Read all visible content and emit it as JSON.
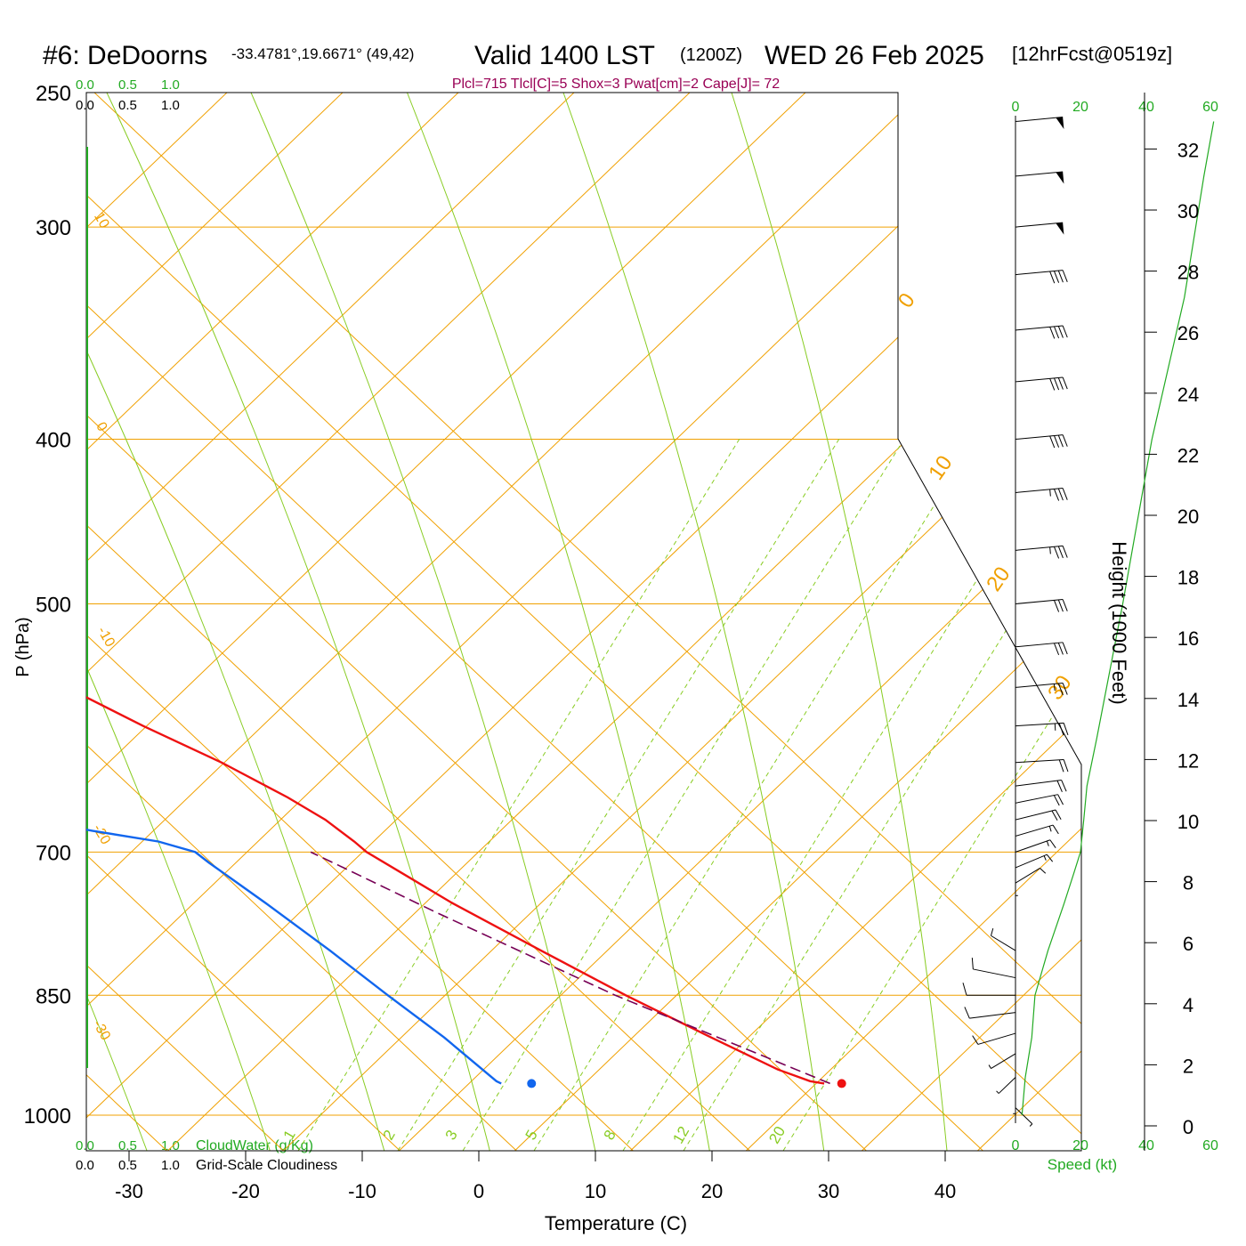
{
  "header": {
    "station": "#6: DeDoorns",
    "coords": "-33.4781°,19.6671° (49,42)",
    "valid": "Valid 1400 LST",
    "zulu": "(1200Z)",
    "date": "WED 26 Feb 2025",
    "fcst": "[12hrFcst@0519z]",
    "indices": "Plcl=715 Tlcl[C]=5 Shox=3 Pwat[cm]=2 Cape[J]= 72"
  },
  "colors": {
    "temperature": "#ee1111",
    "dewpoint": "#1166ee",
    "parcel": "#770055",
    "isotherm": "#f0a000",
    "moist_adiabat": "#88cc22",
    "mixing_ratio": "#88cc22",
    "wind_profile": "#22aa22",
    "indices": "#990055",
    "cloud_scale": "#22aa22"
  },
  "labels": {
    "cloud_top_green": [
      "0.0",
      "0.5",
      "1.0"
    ],
    "cloud_top_black": [
      "0.0",
      "0.5",
      "1.0"
    ],
    "cloud_bottom_green": [
      "0.0",
      "0.5",
      "1.0"
    ],
    "cloud_bottom_black": [
      "0.0",
      "0.5",
      "1.0"
    ],
    "cloudwater": "CloudWater (g/Kg)",
    "cloudiness": "Grid-Scale Cloudiness",
    "speed_label": "Speed (kt)",
    "speed_ticks_top": [
      "0",
      "20",
      "40",
      "60"
    ],
    "speed_ticks_bottom": [
      "0",
      "20",
      "40",
      "60"
    ],
    "height_label": "Height (1000 Feet)"
  },
  "chart_data": {
    "type": "line",
    "subtype": "skew-T log-P thermodynamic diagram",
    "xlabel": "Temperature (C)",
    "ylabel": "P (hPa)",
    "x_ticks": [
      -30,
      -20,
      -10,
      0,
      10,
      20,
      30,
      40
    ],
    "y_ticks": [
      250,
      300,
      400,
      500,
      700,
      850,
      1000
    ],
    "height_ticks_kft": [
      0,
      2,
      4,
      6,
      8,
      10,
      12,
      14,
      16,
      18,
      20,
      22,
      24,
      26,
      28,
      30,
      32
    ],
    "isotherm_labels": [
      "10",
      "0",
      "-10",
      "-20",
      "-30",
      "0",
      "10",
      "20",
      "30"
    ],
    "mixing_ratio_labels": [
      "1",
      "2",
      "3",
      "5",
      "8",
      "12",
      "20"
    ],
    "series": [
      {
        "name": "temperature",
        "points": [
          {
            "p": 958,
            "t": 32.5
          },
          {
            "p": 955,
            "t": 31.5
          },
          {
            "p": 940,
            "t": 29.8
          },
          {
            "p": 900,
            "t": 27.0
          },
          {
            "p": 850,
            "t": 23.5
          },
          {
            "p": 800,
            "t": 20.3
          },
          {
            "p": 750,
            "t": 17.0
          },
          {
            "p": 720,
            "t": 15.4
          },
          {
            "p": 700,
            "t": 14.3
          },
          {
            "p": 690,
            "t": 14.2
          },
          {
            "p": 670,
            "t": 13.7
          },
          {
            "p": 650,
            "t": 12.5
          },
          {
            "p": 620,
            "t": 10.0
          },
          {
            "p": 590,
            "t": 6.6
          },
          {
            "p": 550,
            "t": 2.5
          },
          {
            "p": 500,
            "t": -3.0
          },
          {
            "p": 470,
            "t": -6.2
          },
          {
            "p": 440,
            "t": -10.2
          },
          {
            "p": 400,
            "t": -15.7
          },
          {
            "p": 370,
            "t": -20.6
          },
          {
            "p": 350,
            "t": -24.5
          },
          {
            "p": 330,
            "t": -28.4
          },
          {
            "p": 310,
            "t": -32.9
          },
          {
            "p": 295,
            "t": -36.2
          },
          {
            "p": 280,
            "t": -39.8
          },
          {
            "p": 270,
            "t": -42.4
          }
        ]
      },
      {
        "name": "dewpoint",
        "points": [
          {
            "p": 958,
            "t": 4.8
          },
          {
            "p": 955,
            "t": 4.6
          },
          {
            "p": 900,
            "t": 4.1
          },
          {
            "p": 850,
            "t": 3.1
          },
          {
            "p": 800,
            "t": 2.2
          },
          {
            "p": 750,
            "t": 1.0
          },
          {
            "p": 710,
            "t": -0.2
          },
          {
            "p": 700,
            "t": -0.4
          },
          {
            "p": 690,
            "t": -2.6
          },
          {
            "p": 680,
            "t": -7.3
          },
          {
            "p": 660,
            "t": -15.6
          },
          {
            "p": 640,
            "t": -23.0
          },
          {
            "p": 628,
            "t": -28.5
          },
          {
            "p": 620,
            "t": -31.1
          },
          {
            "p": 590,
            "t": -35.5
          },
          {
            "p": 550,
            "t": -41.0
          },
          {
            "p": 520,
            "t": -45.0
          },
          {
            "p": 490,
            "t": -46.5
          },
          {
            "p": 460,
            "t": -44.5
          },
          {
            "p": 440,
            "t": -41.0
          },
          {
            "p": 400,
            "t": -38.5
          },
          {
            "p": 370,
            "t": -41.0
          },
          {
            "p": 340,
            "t": -45.0
          },
          {
            "p": 320,
            "t": -49.0
          },
          {
            "p": 305,
            "t": -53.5
          },
          {
            "p": 290,
            "t": -58.3
          },
          {
            "p": 270,
            "t": -63.6
          }
        ]
      },
      {
        "name": "parcel",
        "dashed": true,
        "points": [
          {
            "p": 958,
            "t": 33.0
          },
          {
            "p": 900,
            "t": 27.6
          },
          {
            "p": 850,
            "t": 22.6
          },
          {
            "p": 800,
            "t": 18.4
          },
          {
            "p": 760,
            "t": 14.8
          },
          {
            "p": 715,
            "t": 10.9
          },
          {
            "p": 700,
            "t": 9.5
          }
        ]
      }
    ],
    "surface_points": [
      {
        "name": "surface-temperature",
        "p": 958,
        "t": 34.0
      },
      {
        "name": "surface-dewpoint",
        "p": 958,
        "t": 7.4
      }
    ],
    "wind_barbs": [
      {
        "p": 260,
        "dir": 285,
        "kt": 50
      },
      {
        "p": 280,
        "dir": 285,
        "kt": 50
      },
      {
        "p": 300,
        "dir": 285,
        "kt": 50
      },
      {
        "p": 320,
        "dir": 285,
        "kt": 40
      },
      {
        "p": 345,
        "dir": 285,
        "kt": 40
      },
      {
        "p": 370,
        "dir": 285,
        "kt": 40
      },
      {
        "p": 400,
        "dir": 285,
        "kt": 40
      },
      {
        "p": 430,
        "dir": 285,
        "kt": 35
      },
      {
        "p": 465,
        "dir": 285,
        "kt": 35
      },
      {
        "p": 500,
        "dir": 285,
        "kt": 30
      },
      {
        "p": 530,
        "dir": 285,
        "kt": 30
      },
      {
        "p": 560,
        "dir": 285,
        "kt": 25
      },
      {
        "p": 590,
        "dir": 280,
        "kt": 25
      },
      {
        "p": 620,
        "dir": 280,
        "kt": 20
      },
      {
        "p": 640,
        "dir": 290,
        "kt": 20
      },
      {
        "p": 655,
        "dir": 300,
        "kt": 20
      },
      {
        "p": 670,
        "dir": 305,
        "kt": 20
      },
      {
        "p": 685,
        "dir": 310,
        "kt": 15
      },
      {
        "p": 700,
        "dir": 315,
        "kt": 15
      },
      {
        "p": 715,
        "dir": 320,
        "kt": 15
      },
      {
        "p": 730,
        "dir": 330,
        "kt": 10
      },
      {
        "p": 760,
        "dir": 0,
        "kt": 5
      },
      {
        "p": 800,
        "dir": 30,
        "kt": 10
      },
      {
        "p": 830,
        "dir": 60,
        "kt": 10
      },
      {
        "p": 850,
        "dir": 90,
        "kt": 10
      },
      {
        "p": 870,
        "dir": 110,
        "kt": 10
      },
      {
        "p": 895,
        "dir": 130,
        "kt": 10
      },
      {
        "p": 920,
        "dir": 150,
        "kt": 5
      },
      {
        "p": 950,
        "dir": 160,
        "kt": 5
      },
      {
        "p": 975,
        "dir": 180,
        "kt": 5
      },
      {
        "p": 990,
        "dir": 200,
        "kt": 5
      }
    ],
    "wind_speed_profile": [
      {
        "p": 1000,
        "kt": 2
      },
      {
        "p": 950,
        "kt": 3
      },
      {
        "p": 900,
        "kt": 5
      },
      {
        "p": 850,
        "kt": 6
      },
      {
        "p": 800,
        "kt": 10
      },
      {
        "p": 750,
        "kt": 15
      },
      {
        "p": 720,
        "kt": 18
      },
      {
        "p": 700,
        "kt": 20
      },
      {
        "p": 670,
        "kt": 21
      },
      {
        "p": 640,
        "kt": 22
      },
      {
        "p": 600,
        "kt": 25
      },
      {
        "p": 500,
        "kt": 33
      },
      {
        "p": 400,
        "kt": 42
      },
      {
        "p": 330,
        "kt": 52
      },
      {
        "p": 280,
        "kt": 58
      },
      {
        "p": 260,
        "kt": 61
      }
    ]
  }
}
